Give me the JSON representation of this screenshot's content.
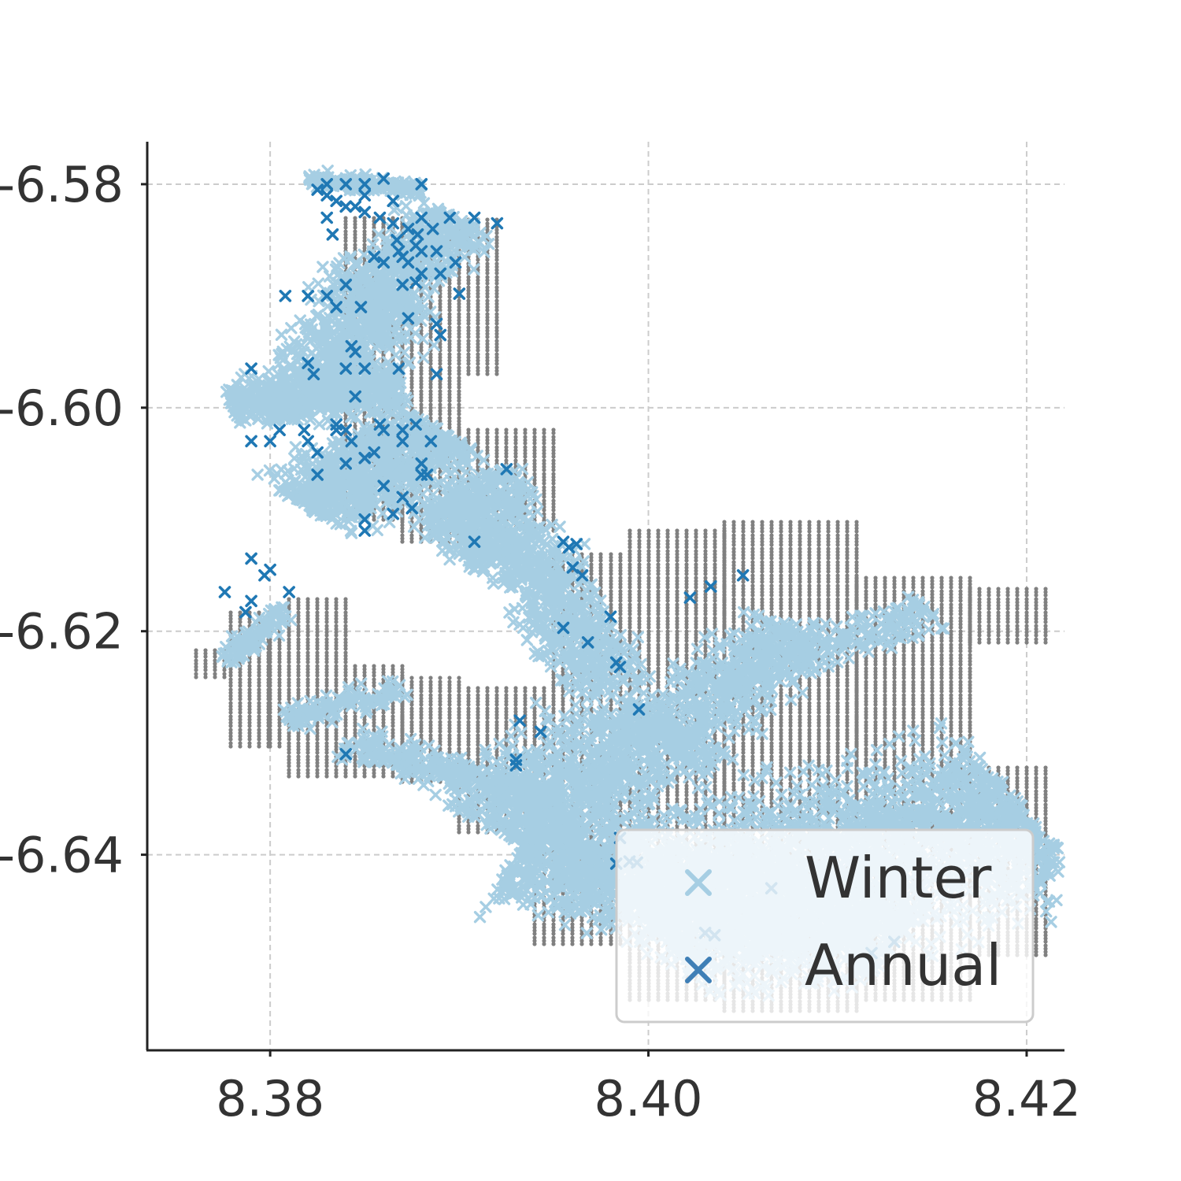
{
  "chart_data": {
    "type": "scatter",
    "title": "",
    "xlabel": "",
    "ylabel": "",
    "xlim": [
      8.3735,
      8.422
    ],
    "ylim": [
      -6.5762,
      -6.6575
    ],
    "y_axis_inverted": true,
    "x_ticks": [
      8.38,
      8.4,
      8.42
    ],
    "x_tick_labels": [
      "8.38",
      "8.40",
      "8.42"
    ],
    "y_ticks": [
      -6.64,
      -6.62,
      -6.6,
      -6.58
    ],
    "y_tick_labels": [
      "-6.64",
      "-6.62",
      "-6.60",
      "-6.58"
    ],
    "grid": true,
    "legend_position": "lower-right",
    "background_grid_points": {
      "color": "#808080",
      "marker": "dot",
      "x_step": 0.0005,
      "y_step": 0.0003,
      "columns": [
        {
          "x_range": [
            8.3761,
            8.3779
          ],
          "y_ranges": [
            [
              -6.6241,
              -6.6215
            ]
          ]
        },
        {
          "x_range": [
            8.3779,
            8.38
          ],
          "y_ranges": [
            [
              -6.6303,
              -6.6183
            ]
          ]
        },
        {
          "x_range": [
            8.38,
            8.383
          ],
          "y_ranges": [
            [
              -6.6303,
              -6.6183
            ]
          ]
        },
        {
          "x_range": [
            8.381,
            8.384
          ],
          "y_ranges": [
            [
              -6.633,
              -6.617
            ]
          ]
        },
        {
          "x_range": [
            8.384,
            8.387
          ],
          "y_ranges": [
            [
              -6.633,
              -6.623
            ],
            [
              -6.61,
              -6.583
            ]
          ]
        },
        {
          "x_range": [
            8.387,
            8.39
          ],
          "y_ranges": [
            [
              -6.6335,
              -6.624
            ],
            [
              -6.612,
              -6.586
            ]
          ]
        },
        {
          "x_range": [
            8.386,
            8.392
          ],
          "y_ranges": [
            [
              -6.597,
              -6.583
            ]
          ]
        },
        {
          "x_range": [
            8.39,
            8.395
          ],
          "y_ranges": [
            [
              -6.638,
              -6.625
            ],
            [
              -6.611,
              -6.602
            ]
          ]
        },
        {
          "x_range": [
            8.395,
            8.4
          ],
          "y_ranges": [
            [
              -6.641,
              -6.613
            ]
          ]
        },
        {
          "x_range": [
            8.394,
            8.399
          ],
          "y_ranges": [
            [
              -6.648,
              -6.638
            ]
          ]
        },
        {
          "x_range": [
            8.399,
            8.404
          ],
          "y_ranges": [
            [
              -6.653,
              -6.611
            ]
          ]
        },
        {
          "x_range": [
            8.404,
            8.411
          ],
          "y_ranges": [
            [
              -6.654,
              -6.61
            ]
          ]
        },
        {
          "x_range": [
            8.411,
            8.417
          ],
          "y_ranges": [
            [
              -6.653,
              -6.615
            ]
          ]
        },
        {
          "x_range": [
            8.417,
            8.421
          ],
          "y_ranges": [
            [
              -6.649,
              -6.632
            ],
            [
              -6.621,
              -6.616
            ]
          ]
        }
      ]
    },
    "series": [
      {
        "name": "Winter",
        "marker": "x",
        "color": "#a6cee3",
        "regions": [
          {
            "shape": "band",
            "from": [
              8.4,
              -6.646
            ],
            "to": [
              8.42,
              -6.636
            ],
            "width": 0.011,
            "density": 2400
          },
          {
            "shape": "band",
            "from": [
              8.393,
              -6.64
            ],
            "to": [
              8.413,
              -6.648
            ],
            "width": 0.007,
            "density": 1500
          },
          {
            "shape": "band",
            "from": [
              8.392,
              -6.638
            ],
            "to": [
              8.401,
              -6.628
            ],
            "width": 0.007,
            "density": 900
          },
          {
            "shape": "band",
            "from": [
              8.4,
              -6.63
            ],
            "to": [
              8.408,
              -6.62
            ],
            "width": 0.0045,
            "density": 450
          },
          {
            "shape": "band",
            "from": [
              8.404,
              -6.624
            ],
            "to": [
              8.415,
              -6.618
            ],
            "width": 0.003,
            "density": 220
          },
          {
            "shape": "band",
            "from": [
              8.391,
              -6.606
            ],
            "to": [
              8.398,
              -6.625
            ],
            "width": 0.0035,
            "density": 700
          },
          {
            "shape": "band",
            "from": [
              8.389,
              -6.608
            ],
            "to": [
              8.392,
              -6.614
            ],
            "width": 0.003,
            "density": 260
          },
          {
            "shape": "band",
            "from": [
              8.384,
              -6.63
            ],
            "to": [
              8.395,
              -6.635
            ],
            "width": 0.0022,
            "density": 260
          },
          {
            "shape": "band",
            "from": [
              8.381,
              -6.628
            ],
            "to": [
              8.387,
              -6.625
            ],
            "width": 0.0016,
            "density": 120
          },
          {
            "shape": "band",
            "from": [
              8.3775,
              -6.6225
            ],
            "to": [
              8.381,
              -6.618
            ],
            "width": 0.0012,
            "density": 90
          },
          {
            "shape": "band",
            "from": [
              8.382,
              -6.609
            ],
            "to": [
              8.389,
              -6.602
            ],
            "width": 0.005,
            "density": 700
          },
          {
            "shape": "band",
            "from": [
              8.378,
              -6.6
            ],
            "to": [
              8.387,
              -6.598
            ],
            "width": 0.003,
            "density": 500
          },
          {
            "shape": "band",
            "from": [
              8.382,
              -6.599
            ],
            "to": [
              8.386,
              -6.59
            ],
            "width": 0.0045,
            "density": 500
          },
          {
            "shape": "band",
            "from": [
              8.385,
              -6.59
            ],
            "to": [
              8.39,
              -6.583
            ],
            "width": 0.004,
            "density": 420
          },
          {
            "shape": "band",
            "from": [
              8.382,
              -6.5795
            ],
            "to": [
              8.388,
              -6.5805
            ],
            "width": 0.0009,
            "density": 160
          }
        ]
      },
      {
        "name": "Annual",
        "marker": "x",
        "color": "#1f78b4",
        "points": [
          [
            8.403,
            -6.647
          ],
          [
            8.4035,
            -6.6472
          ],
          [
            8.4118,
            -6.6488
          ],
          [
            8.413,
            -6.6478
          ],
          [
            8.4065,
            -6.643
          ],
          [
            8.3983,
            -6.6408
          ],
          [
            8.399,
            -6.6406
          ],
          [
            8.3994,
            -6.6407
          ],
          [
            8.3985,
            -6.6385
          ],
          [
            8.393,
            -6.632
          ],
          [
            8.393,
            -6.6315
          ],
          [
            8.384,
            -6.631
          ],
          [
            8.3943,
            -6.629
          ],
          [
            8.3932,
            -6.628
          ],
          [
            8.3995,
            -6.627
          ],
          [
            8.3983,
            -6.6228
          ],
          [
            8.3985,
            -6.6232
          ],
          [
            8.3968,
            -6.621
          ],
          [
            8.3955,
            -6.6197
          ],
          [
            8.398,
            -6.6187
          ],
          [
            8.4022,
            -6.617
          ],
          [
            8.4033,
            -6.616
          ],
          [
            8.405,
            -6.615
          ],
          [
            8.3965,
            -6.615
          ],
          [
            8.396,
            -6.6143
          ],
          [
            8.3962,
            -6.6122
          ],
          [
            8.3955,
            -6.612
          ],
          [
            8.3958,
            -6.6125
          ],
          [
            8.3908,
            -6.612
          ],
          [
            8.3925,
            -6.6055
          ],
          [
            8.3787,
            -6.6183
          ],
          [
            8.379,
            -6.6173
          ],
          [
            8.381,
            -6.6165
          ],
          [
            8.3776,
            -6.6165
          ],
          [
            8.3797,
            -6.615
          ],
          [
            8.38,
            -6.6145
          ],
          [
            8.379,
            -6.6135
          ],
          [
            8.385,
            -6.611
          ],
          [
            8.385,
            -6.61
          ],
          [
            8.3865,
            -6.6095
          ],
          [
            8.3875,
            -6.609
          ],
          [
            8.387,
            -6.608
          ],
          [
            8.386,
            -6.607
          ],
          [
            8.388,
            -6.606
          ],
          [
            8.384,
            -6.605
          ],
          [
            8.385,
            -6.6045
          ],
          [
            8.3825,
            -6.606
          ],
          [
            8.3855,
            -6.604
          ],
          [
            8.3883,
            -6.606
          ],
          [
            8.388,
            -6.605
          ],
          [
            8.387,
            -6.603
          ],
          [
            8.3825,
            -6.604
          ],
          [
            8.382,
            -6.603
          ],
          [
            8.3885,
            -6.603
          ],
          [
            8.386,
            -6.602
          ],
          [
            8.3843,
            -6.603
          ],
          [
            8.38,
            -6.603
          ],
          [
            8.379,
            -6.603
          ],
          [
            8.384,
            -6.602
          ],
          [
            8.387,
            -6.602
          ],
          [
            8.3835,
            -6.602
          ],
          [
            8.3818,
            -6.602
          ],
          [
            8.3835,
            -6.6015
          ],
          [
            8.3805,
            -6.602
          ],
          [
            8.3877,
            -6.6015
          ],
          [
            8.3858,
            -6.6015
          ],
          [
            8.3845,
            -6.599
          ],
          [
            8.3823,
            -6.597
          ],
          [
            8.384,
            -6.5965
          ],
          [
            8.385,
            -6.5965
          ],
          [
            8.3868,
            -6.5965
          ],
          [
            8.3888,
            -6.597
          ],
          [
            8.382,
            -6.596
          ],
          [
            8.379,
            -6.5965
          ],
          [
            8.3843,
            -6.5945
          ],
          [
            8.3845,
            -6.595
          ],
          [
            8.389,
            -6.5935
          ],
          [
            8.3888,
            -6.5925
          ],
          [
            8.3873,
            -6.592
          ],
          [
            8.3848,
            -6.591
          ],
          [
            8.3835,
            -6.591
          ],
          [
            8.3808,
            -6.59
          ],
          [
            8.382,
            -6.59
          ],
          [
            8.383,
            -6.59
          ],
          [
            8.384,
            -6.589
          ],
          [
            8.387,
            -6.589
          ],
          [
            8.3877,
            -6.5888
          ],
          [
            8.39,
            -6.5898
          ],
          [
            8.389,
            -6.588
          ],
          [
            8.388,
            -6.588
          ],
          [
            8.3873,
            -6.587
          ],
          [
            8.387,
            -6.5865
          ],
          [
            8.3868,
            -6.586
          ],
          [
            8.388,
            -6.586
          ],
          [
            8.386,
            -6.587
          ],
          [
            8.3855,
            -6.5865
          ],
          [
            8.3888,
            -6.586
          ],
          [
            8.3898,
            -6.587
          ],
          [
            8.392,
            -6.5835
          ],
          [
            8.3908,
            -6.583
          ],
          [
            8.3895,
            -6.583
          ],
          [
            8.388,
            -6.583
          ],
          [
            8.3873,
            -6.584
          ],
          [
            8.3865,
            -6.5835
          ],
          [
            8.3858,
            -6.583
          ],
          [
            8.385,
            -6.5825
          ],
          [
            8.3845,
            -6.582
          ],
          [
            8.384,
            -6.582
          ],
          [
            8.3835,
            -6.5815
          ],
          [
            8.383,
            -6.581
          ],
          [
            8.3825,
            -6.5805
          ],
          [
            8.383,
            -6.58
          ],
          [
            8.384,
            -6.58
          ],
          [
            8.385,
            -6.58
          ],
          [
            8.386,
            -6.5795
          ],
          [
            8.388,
            -6.58
          ],
          [
            8.3833,
            -6.5845
          ],
          [
            8.383,
            -6.583
          ],
          [
            8.385,
            -6.581
          ],
          [
            8.3865,
            -6.5815
          ],
          [
            8.3878,
            -6.5845
          ],
          [
            8.3867,
            -6.585
          ],
          [
            8.3877,
            -6.5855
          ],
          [
            8.3886,
            -6.584
          ]
        ]
      }
    ],
    "legend": [
      {
        "label": "Winter",
        "color": "#a6cee3"
      },
      {
        "label": "Annual",
        "color": "#1f78b4"
      }
    ]
  }
}
